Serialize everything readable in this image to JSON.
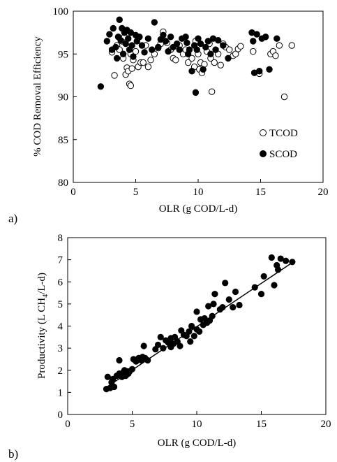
{
  "figure": {
    "panel_a_label": "a)",
    "panel_b_label": "b)"
  },
  "chart_data": [
    {
      "type": "scatter",
      "title": "",
      "xlabel": "OLR (g COD/L-d)",
      "ylabel": "% COD Removal  Efficiency",
      "xlim": [
        0,
        20
      ],
      "ylim": [
        80,
        100
      ],
      "xticks": [
        0,
        5,
        10,
        15,
        20
      ],
      "yticks": [
        80,
        85,
        90,
        95,
        100
      ],
      "legend_position": "bottom-right",
      "series": [
        {
          "name": "TCOD",
          "marker": "open-circle",
          "color": "#000000",
          "points": [
            [
              3.1,
              95.2
            ],
            [
              3.3,
              92.5
            ],
            [
              3.5,
              96.0
            ],
            [
              3.7,
              95.5
            ],
            [
              3.9,
              96.5
            ],
            [
              4.0,
              94.5
            ],
            [
              4.1,
              97.0
            ],
            [
              4.2,
              92.6
            ],
            [
              4.3,
              93.4
            ],
            [
              4.4,
              93.0
            ],
            [
              4.5,
              91.5
            ],
            [
              4.6,
              91.3
            ],
            [
              4.6,
              95.0
            ],
            [
              4.7,
              93.3
            ],
            [
              4.8,
              94.3
            ],
            [
              5.0,
              95.3
            ],
            [
              5.2,
              93.5
            ],
            [
              5.4,
              94.0
            ],
            [
              5.6,
              94.0
            ],
            [
              5.8,
              96.0
            ],
            [
              6.0,
              93.5
            ],
            [
              6.2,
              94.3
            ],
            [
              6.5,
              95.0
            ],
            [
              6.8,
              95.7
            ],
            [
              7.0,
              96.2
            ],
            [
              7.2,
              97.6
            ],
            [
              7.5,
              96.3
            ],
            [
              7.8,
              95.5
            ],
            [
              8.0,
              94.5
            ],
            [
              8.2,
              94.3
            ],
            [
              8.5,
              96.0
            ],
            [
              8.8,
              95.0
            ],
            [
              9.0,
              95.5
            ],
            [
              9.2,
              94.0
            ],
            [
              9.5,
              94.5
            ],
            [
              9.7,
              93.5
            ],
            [
              9.8,
              96.5
            ],
            [
              10.0,
              95.0
            ],
            [
              10.1,
              93.2
            ],
            [
              10.2,
              94.0
            ],
            [
              10.3,
              92.8
            ],
            [
              10.5,
              93.8
            ],
            [
              10.7,
              95.3
            ],
            [
              10.9,
              96.2
            ],
            [
              11.0,
              94.5
            ],
            [
              11.1,
              90.6
            ],
            [
              11.3,
              94.0
            ],
            [
              11.6,
              95.0
            ],
            [
              11.8,
              93.7
            ],
            [
              12.0,
              96.2
            ],
            [
              12.2,
              95.8
            ],
            [
              12.5,
              95.5
            ],
            [
              12.8,
              94.8
            ],
            [
              13.0,
              95.0
            ],
            [
              13.2,
              95.6
            ],
            [
              13.4,
              95.9
            ],
            [
              14.4,
              95.3
            ],
            [
              14.9,
              92.7
            ],
            [
              15.8,
              95.0
            ],
            [
              16.0,
              95.3
            ],
            [
              16.2,
              94.8
            ],
            [
              16.5,
              96.0
            ],
            [
              16.9,
              90.0
            ],
            [
              17.5,
              96.0
            ]
          ]
        },
        {
          "name": "SCOD",
          "marker": "filled-circle",
          "color": "#000000",
          "points": [
            [
              2.2,
              91.2
            ],
            [
              2.7,
              96.5
            ],
            [
              2.9,
              97.3
            ],
            [
              3.1,
              95.5
            ],
            [
              3.2,
              98.0
            ],
            [
              3.4,
              95.8
            ],
            [
              3.5,
              94.5
            ],
            [
              3.6,
              97.0
            ],
            [
              3.7,
              99.0
            ],
            [
              3.8,
              96.6
            ],
            [
              3.9,
              98.0
            ],
            [
              4.0,
              95.0
            ],
            [
              4.1,
              97.5
            ],
            [
              4.2,
              96.2
            ],
            [
              4.3,
              97.8
            ],
            [
              4.4,
              96.8
            ],
            [
              4.5,
              95.5
            ],
            [
              4.6,
              97.5
            ],
            [
              4.7,
              96.0
            ],
            [
              4.8,
              94.7
            ],
            [
              5.0,
              97.2
            ],
            [
              5.1,
              96.5
            ],
            [
              5.3,
              97.0
            ],
            [
              5.5,
              96.0
            ],
            [
              5.7,
              95.2
            ],
            [
              6.0,
              96.8
            ],
            [
              6.3,
              95.5
            ],
            [
              6.5,
              98.7
            ],
            [
              6.8,
              95.8
            ],
            [
              7.0,
              96.7
            ],
            [
              7.2,
              97.2
            ],
            [
              7.4,
              96.5
            ],
            [
              7.6,
              95.3
            ],
            [
              7.8,
              97.0
            ],
            [
              8.0,
              95.8
            ],
            [
              8.3,
              96.2
            ],
            [
              8.5,
              95.5
            ],
            [
              8.7,
              96.8
            ],
            [
              9.0,
              97.0
            ],
            [
              9.1,
              96.3
            ],
            [
              9.2,
              95.0
            ],
            [
              9.3,
              95.5
            ],
            [
              9.5,
              93.0
            ],
            [
              9.7,
              96.0
            ],
            [
              9.9,
              95.5
            ],
            [
              10.0,
              96.8
            ],
            [
              10.2,
              96.2
            ],
            [
              10.4,
              93.2
            ],
            [
              10.6,
              95.8
            ],
            [
              10.8,
              96.5
            ],
            [
              9.8,
              90.5
            ],
            [
              11.0,
              95.0
            ],
            [
              11.2,
              96.8
            ],
            [
              11.4,
              95.5
            ],
            [
              11.6,
              96.6
            ],
            [
              12.0,
              96.0
            ],
            [
              12.4,
              94.5
            ],
            [
              14.3,
              97.5
            ],
            [
              14.4,
              96.5
            ],
            [
              14.5,
              92.8
            ],
            [
              14.7,
              97.3
            ],
            [
              14.9,
              93.0
            ],
            [
              15.1,
              96.8
            ],
            [
              15.4,
              97.0
            ],
            [
              15.7,
              93.2
            ],
            [
              16.3,
              96.8
            ]
          ]
        }
      ]
    },
    {
      "type": "scatter",
      "title": "",
      "xlabel": "OLR (g COD/L-d)",
      "ylabel_prefix": "Productivity (L CH",
      "ylabel_sub": "4",
      "ylabel_suffix": "/L-d)",
      "xlim": [
        0,
        20
      ],
      "ylim": [
        0,
        8
      ],
      "xticks": [
        0,
        5,
        10,
        15,
        20
      ],
      "yticks": [
        0,
        1,
        2,
        3,
        4,
        5,
        6,
        7,
        8
      ],
      "trendline": {
        "x1": 2.8,
        "y1": 1.15,
        "x2": 17.6,
        "y2": 6.95
      },
      "series": [
        {
          "marker": "filled-circle",
          "color": "#000000",
          "points": [
            [
              3.0,
              1.15
            ],
            [
              3.1,
              1.7
            ],
            [
              3.3,
              1.2
            ],
            [
              3.4,
              1.45
            ],
            [
              3.5,
              1.6
            ],
            [
              3.6,
              1.25
            ],
            [
              3.8,
              1.75
            ],
            [
              4.0,
              1.85
            ],
            [
              4.0,
              2.45
            ],
            [
              4.2,
              1.7
            ],
            [
              4.3,
              1.9
            ],
            [
              4.4,
              2.0
            ],
            [
              4.5,
              1.75
            ],
            [
              4.6,
              1.95
            ],
            [
              4.7,
              1.85
            ],
            [
              4.8,
              1.95
            ],
            [
              5.0,
              2.05
            ],
            [
              5.1,
              2.5
            ],
            [
              5.3,
              2.4
            ],
            [
              5.5,
              2.55
            ],
            [
              5.7,
              2.45
            ],
            [
              5.8,
              2.6
            ],
            [
              5.9,
              3.1
            ],
            [
              6.0,
              2.55
            ],
            [
              6.2,
              2.45
            ],
            [
              6.8,
              2.95
            ],
            [
              7.0,
              3.15
            ],
            [
              7.2,
              3.5
            ],
            [
              7.4,
              3.0
            ],
            [
              7.6,
              3.35
            ],
            [
              7.8,
              3.25
            ],
            [
              8.0,
              3.05
            ],
            [
              8.0,
              3.45
            ],
            [
              8.2,
              3.2
            ],
            [
              8.3,
              3.5
            ],
            [
              8.5,
              3.3
            ],
            [
              8.7,
              3.1
            ],
            [
              8.8,
              3.8
            ],
            [
              9.0,
              3.6
            ],
            [
              9.2,
              3.55
            ],
            [
              9.4,
              3.75
            ],
            [
              9.5,
              3.3
            ],
            [
              9.6,
              4.0
            ],
            [
              9.8,
              3.55
            ],
            [
              10.0,
              3.85
            ],
            [
              10.0,
              4.65
            ],
            [
              10.2,
              3.75
            ],
            [
              10.3,
              4.3
            ],
            [
              10.5,
              4.05
            ],
            [
              10.6,
              4.35
            ],
            [
              10.8,
              4.15
            ],
            [
              10.9,
              4.9
            ],
            [
              11.0,
              4.25
            ],
            [
              11.2,
              4.45
            ],
            [
              11.3,
              5.0
            ],
            [
              11.4,
              5.45
            ],
            [
              11.8,
              4.75
            ],
            [
              12.0,
              4.85
            ],
            [
              12.2,
              5.95
            ],
            [
              12.5,
              5.2
            ],
            [
              12.8,
              4.85
            ],
            [
              13.0,
              5.55
            ],
            [
              13.3,
              4.95
            ],
            [
              14.5,
              5.75
            ],
            [
              15.0,
              5.45
            ],
            [
              15.2,
              6.25
            ],
            [
              15.8,
              7.1
            ],
            [
              16.0,
              5.85
            ],
            [
              16.2,
              6.75
            ],
            [
              16.3,
              6.55
            ],
            [
              16.5,
              7.05
            ],
            [
              16.9,
              6.95
            ],
            [
              17.4,
              6.9
            ]
          ]
        }
      ]
    }
  ]
}
